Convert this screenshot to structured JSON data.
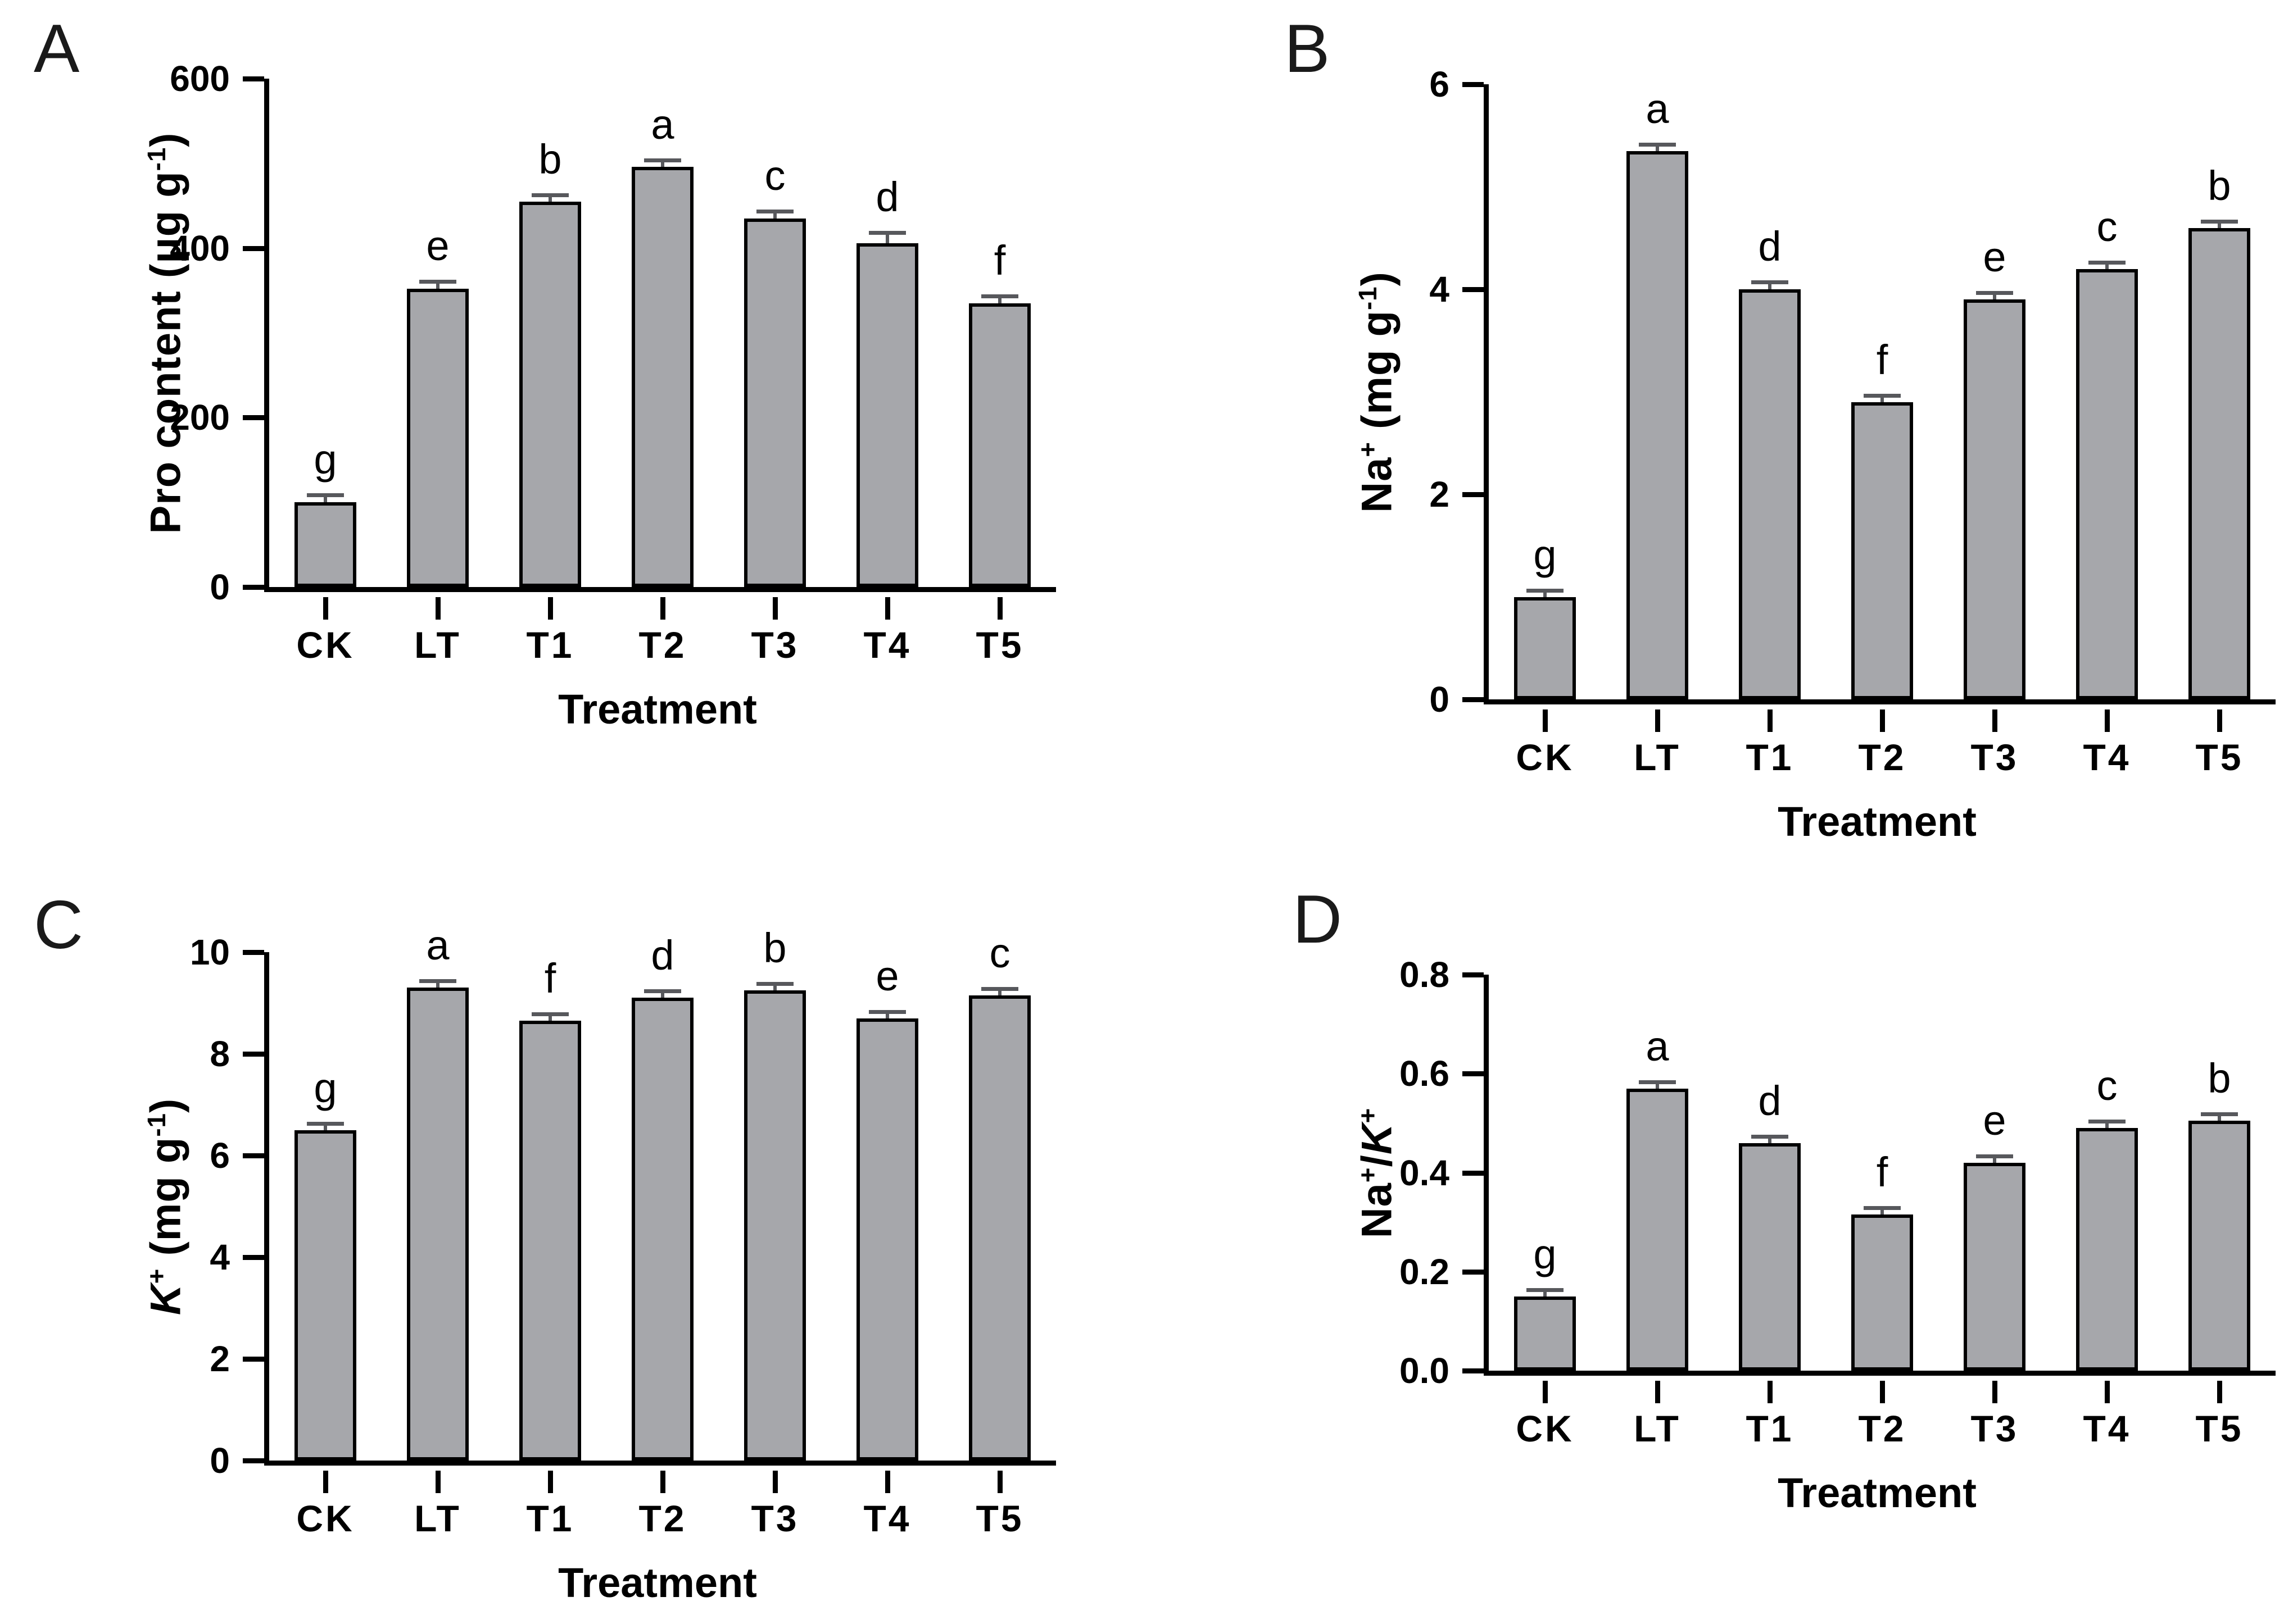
{
  "figure": {
    "background": "#ffffff",
    "bar_fill": "#a6a7ab",
    "bar_border": "#000000",
    "error_color": "#57585c",
    "axis_color": "#000000",
    "text_color": "#000000"
  },
  "chart_data": [
    {
      "panel": "A",
      "type": "bar",
      "title": "",
      "xlabel": "Treatment",
      "ylabel": "Pro content (μg g-1)",
      "ylabel_rich": [
        {
          "t": "Pro content (μg g"
        },
        {
          "t": "-1",
          "sup": true
        },
        {
          "t": ")"
        }
      ],
      "categories": [
        "CK",
        "LT",
        "T1",
        "T2",
        "T3",
        "T4",
        "T5"
      ],
      "values": [
        100,
        352,
        455,
        496,
        435,
        406,
        335
      ],
      "errors": [
        6,
        6,
        5,
        5,
        6,
        10,
        6
      ],
      "sig_letters": [
        "g",
        "e",
        "b",
        "a",
        "c",
        "d",
        "f"
      ],
      "ylim": [
        0,
        600
      ],
      "yticks": [
        0,
        200,
        400,
        600
      ],
      "ytick_labels": [
        "0",
        "200",
        "400",
        "600"
      ],
      "grid": false,
      "legend": "none"
    },
    {
      "panel": "B",
      "type": "bar",
      "title": "",
      "xlabel": "Treatment",
      "ylabel": "Na+ (mg g-1)",
      "ylabel_rich": [
        {
          "t": "Na"
        },
        {
          "t": "+",
          "sup": true
        },
        {
          "t": " (mg g"
        },
        {
          "t": "-1",
          "sup": true
        },
        {
          "t": ")"
        }
      ],
      "categories": [
        "CK",
        "LT",
        "T1",
        "T2",
        "T3",
        "T4",
        "T5"
      ],
      "values": [
        1.0,
        5.35,
        4.0,
        2.9,
        3.9,
        4.2,
        4.6
      ],
      "errors": [
        0.03,
        0.03,
        0.05,
        0.04,
        0.04,
        0.04,
        0.04
      ],
      "sig_letters": [
        "g",
        "a",
        "d",
        "f",
        "e",
        "c",
        "b"
      ],
      "ylim": [
        0,
        6
      ],
      "yticks": [
        0,
        2,
        4,
        6
      ],
      "ytick_labels": [
        "0",
        "2",
        "4",
        "6"
      ],
      "grid": false,
      "legend": "none"
    },
    {
      "panel": "C",
      "type": "bar",
      "title": "",
      "xlabel": "Treatment",
      "ylabel": "K+ (mg g-1)",
      "ylabel_rich": [
        {
          "t": "K",
          "italic": true
        },
        {
          "t": "+",
          "sup": true
        },
        {
          "t": " (mg g"
        },
        {
          "t": "-1",
          "sup": true
        },
        {
          "t": ")"
        }
      ],
      "categories": [
        "CK",
        "LT",
        "T1",
        "T2",
        "T3",
        "T4",
        "T5"
      ],
      "values": [
        6.5,
        9.3,
        8.65,
        9.1,
        9.25,
        8.7,
        9.15
      ],
      "errors": [
        0.06,
        0.05,
        0.08,
        0.06,
        0.05,
        0.05,
        0.04
      ],
      "sig_letters": [
        "g",
        "a",
        "f",
        "d",
        "b",
        "e",
        "c"
      ],
      "ylim": [
        0,
        10
      ],
      "yticks": [
        0,
        2,
        4,
        6,
        8,
        10
      ],
      "ytick_labels": [
        "0",
        "2",
        "4",
        "6",
        "8",
        "10"
      ],
      "grid": false,
      "legend": "none"
    },
    {
      "panel": "D",
      "type": "bar",
      "title": "",
      "xlabel": "Treatment",
      "ylabel": "Na+/K+",
      "ylabel_rich": [
        {
          "t": "Na"
        },
        {
          "t": "+",
          "sup": true
        },
        {
          "t": "/"
        },
        {
          "t": "K",
          "italic": true
        },
        {
          "t": "+",
          "sup": true
        }
      ],
      "categories": [
        "CK",
        "LT",
        "T1",
        "T2",
        "T3",
        "T4",
        "T5"
      ],
      "values": [
        0.15,
        0.57,
        0.46,
        0.315,
        0.42,
        0.49,
        0.505
      ],
      "errors": [
        0.004,
        0.005,
        0.006,
        0.005,
        0.005,
        0.004,
        0.005
      ],
      "sig_letters": [
        "g",
        "a",
        "d",
        "f",
        "e",
        "c",
        "b"
      ],
      "ylim": [
        0,
        0.8
      ],
      "yticks": [
        0,
        0.2,
        0.4,
        0.6,
        0.8
      ],
      "ytick_labels": [
        "0.0",
        "0.2",
        "0.4",
        "0.6",
        "0.8"
      ],
      "grid": false,
      "legend": "none"
    }
  ]
}
